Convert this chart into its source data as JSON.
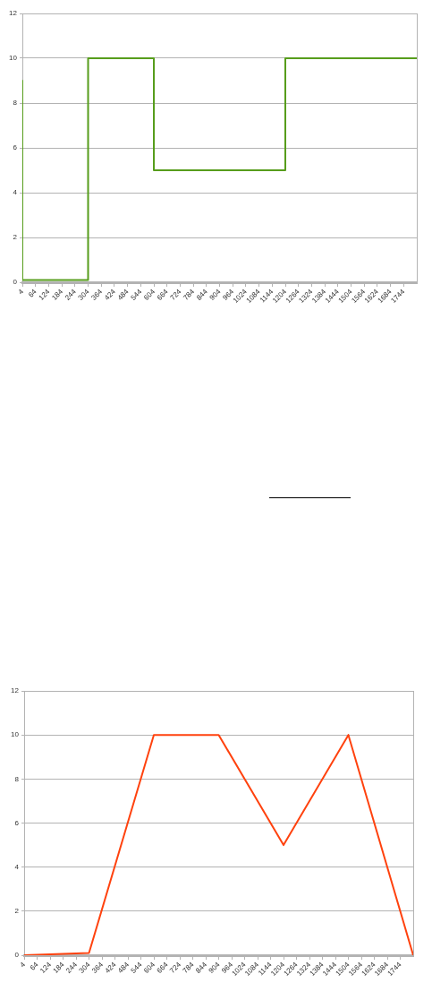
{
  "chart_data": [
    {
      "type": "step",
      "x": [
        4,
        304,
        604,
        1204,
        1504,
        1804
      ],
      "values": [
        9,
        0.1,
        10,
        5,
        10,
        10
      ],
      "color": "#579d1c",
      "xlim": [
        4,
        1804
      ],
      "xticks": [
        4,
        64,
        124,
        184,
        244,
        304,
        364,
        424,
        484,
        544,
        604,
        664,
        724,
        784,
        844,
        904,
        964,
        1024,
        1084,
        1144,
        1204,
        1264,
        1324,
        1384,
        1444,
        1504,
        1564,
        1624,
        1684,
        1744
      ],
      "ylim": [
        0,
        12
      ],
      "yticks": [
        0,
        2,
        4,
        6,
        8,
        10,
        12
      ],
      "grid": "y"
    },
    {
      "type": "line",
      "x": [
        4,
        304,
        604,
        904,
        1204,
        1504,
        1804
      ],
      "values": [
        0,
        0.1,
        10,
        10,
        5,
        10,
        0
      ],
      "color": "#ff420e",
      "xlim": [
        4,
        1804
      ],
      "xticks": [
        4,
        64,
        124,
        184,
        244,
        304,
        364,
        424,
        484,
        544,
        604,
        664,
        724,
        784,
        844,
        904,
        964,
        1024,
        1084,
        1144,
        1204,
        1264,
        1324,
        1384,
        1444,
        1504,
        1564,
        1624,
        1684,
        1744
      ],
      "ylim": [
        0,
        12
      ],
      "yticks": [
        0,
        2,
        4,
        6,
        8,
        10,
        12
      ],
      "grid": "y"
    }
  ]
}
